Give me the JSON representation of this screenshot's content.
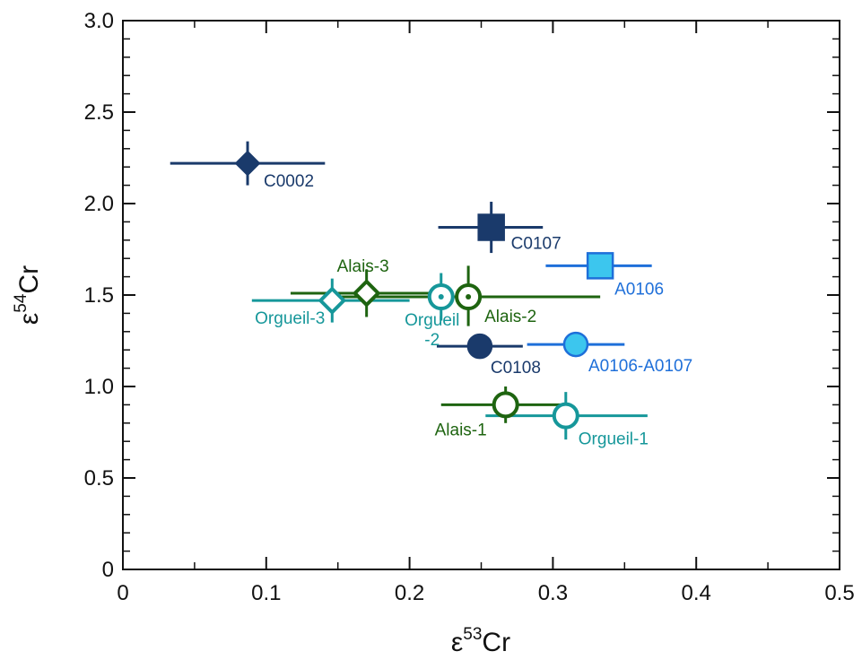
{
  "chart_data": {
    "type": "scatter",
    "title": "",
    "xlabel": {
      "base": "ε",
      "sup": "53",
      "tail": "Cr"
    },
    "ylabel": {
      "base": "ε",
      "sup": "54",
      "tail": "Cr"
    },
    "xlim": [
      0,
      0.5
    ],
    "ylim": [
      0,
      3.0
    ],
    "x_ticks": [
      "0",
      "0.1",
      "0.2",
      "0.3",
      "0.4",
      "0.5"
    ],
    "y_ticks": [
      "0",
      "0.5",
      "1.0",
      "1.5",
      "2.0",
      "2.5",
      "3.0"
    ],
    "grid": false,
    "legend": "none",
    "points": [
      {
        "name": "C0002",
        "label": "C0002",
        "x": 0.087,
        "y": 2.22,
        "xerr": [
          0.033,
          0.141
        ],
        "yerr": [
          2.1,
          2.34
        ],
        "marker": "diamond",
        "fill": "#1a3a6b",
        "stroke": "#1a3a6b",
        "color": "#1a3a6b"
      },
      {
        "name": "C0107",
        "label": "C0107",
        "x": 0.257,
        "y": 1.87,
        "xerr": [
          0.22,
          0.293
        ],
        "yerr": [
          1.73,
          2.01
        ],
        "marker": "square",
        "fill": "#1a3a6b",
        "stroke": "#1a3a6b",
        "color": "#1a3a6b"
      },
      {
        "name": "A0106",
        "label": "A0106",
        "x": 0.333,
        "y": 1.66,
        "xerr": [
          0.295,
          0.369
        ],
        "yerr": [
          1.66,
          1.66
        ],
        "marker": "square",
        "fill": "#3cc6ee",
        "stroke": "#1e6fd9",
        "color": "#1e6fd9"
      },
      {
        "name": "Alais-3",
        "label": "Alais-3",
        "x": 0.17,
        "y": 1.51,
        "xerr": [
          0.117,
          0.222
        ],
        "yerr": [
          1.38,
          1.64
        ],
        "marker": "diamond-open",
        "fill": "#ffffff",
        "stroke": "#1e6410",
        "color": "#1e6410"
      },
      {
        "name": "Orgueil-3",
        "label": "Orgueil-3",
        "x": 0.146,
        "y": 1.47,
        "xerr": [
          0.09,
          0.2
        ],
        "yerr": [
          1.35,
          1.59
        ],
        "marker": "diamond-open",
        "fill": "#ffffff",
        "stroke": "#16979a",
        "color": "#16979a"
      },
      {
        "name": "Orgueil-2",
        "label": "Orgueil",
        "label2": "-2",
        "x": 0.222,
        "y": 1.49,
        "xerr": [
          0.16,
          0.283
        ],
        "yerr": [
          1.36,
          1.62
        ],
        "marker": "circle-dot",
        "fill": "#ffffff",
        "stroke": "#16979a",
        "color": "#16979a"
      },
      {
        "name": "Alais-2",
        "label": "Alais-2",
        "x": 0.241,
        "y": 1.49,
        "xerr": [
          0.15,
          0.333
        ],
        "yerr": [
          1.33,
          1.66
        ],
        "marker": "circle-dot",
        "fill": "#ffffff",
        "stroke": "#1e6410",
        "color": "#1e6410"
      },
      {
        "name": "C0108",
        "label": "C0108",
        "x": 0.249,
        "y": 1.22,
        "xerr": [
          0.219,
          0.279
        ],
        "yerr": [
          1.22,
          1.22
        ],
        "marker": "circle",
        "fill": "#1a3a6b",
        "stroke": "#1a3a6b",
        "color": "#1a3a6b"
      },
      {
        "name": "A0106-A0107",
        "label": "A0106-A0107",
        "x": 0.316,
        "y": 1.23,
        "xerr": [
          0.282,
          0.35
        ],
        "yerr": [
          1.23,
          1.23
        ],
        "marker": "circle",
        "fill": "#3cc6ee",
        "stroke": "#1e6fd9",
        "color": "#1e6fd9"
      },
      {
        "name": "Alais-1",
        "label": "Alais-1",
        "x": 0.267,
        "y": 0.9,
        "xerr": [
          0.222,
          0.312
        ],
        "yerr": [
          0.8,
          1.0
        ],
        "marker": "circle-open",
        "fill": "#ffffff",
        "stroke": "#1e6410",
        "color": "#1e6410"
      },
      {
        "name": "Orgueil-1",
        "label": "Orgueil-1",
        "x": 0.309,
        "y": 0.84,
        "xerr": [
          0.253,
          0.366
        ],
        "yerr": [
          0.71,
          0.97
        ],
        "marker": "circle-open",
        "fill": "#ffffff",
        "stroke": "#16979a",
        "color": "#16979a"
      }
    ]
  }
}
